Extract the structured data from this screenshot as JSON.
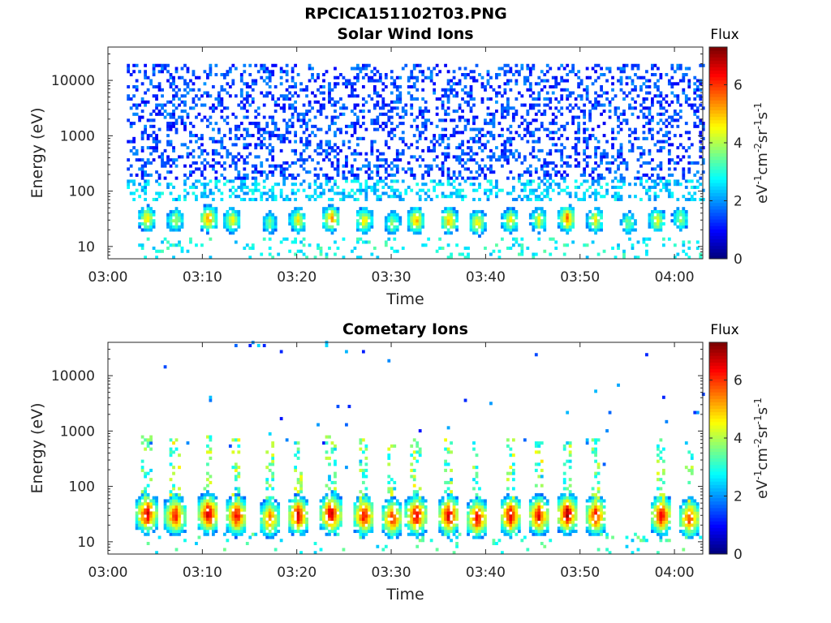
{
  "figure_title": "RPCICA151102T03.PNG",
  "chart_data": [
    {
      "type": "heatmap",
      "title": "Solar Wind Ions",
      "xlabel": "Time",
      "ylabel": "Energy (eV)",
      "x_ticks": [
        "03:00",
        "03:10",
        "03:20",
        "03:30",
        "03:40",
        "03:50",
        "04:00"
      ],
      "x_range": [
        "03:00",
        "04:03"
      ],
      "y_scale": "log",
      "y_ticks": [
        10,
        100,
        1000,
        10000
      ],
      "y_range": [
        6,
        40000
      ],
      "colorbar": {
        "label": "Flux",
        "unit": "eV-1cm-2sr-1s-1",
        "range": [
          0,
          7.3
        ],
        "ticks": [
          0,
          2,
          4,
          6
        ],
        "colormap": "jet"
      },
      "data_start": "03:02",
      "bursts": [
        {
          "time": "03:04",
          "energy": 30,
          "peak": 4.8
        },
        {
          "time": "03:07",
          "energy": 28,
          "peak": 4.2
        },
        {
          "time": "03:10.5",
          "energy": 30,
          "peak": 5.6
        },
        {
          "time": "03:13",
          "energy": 28,
          "peak": 4.6
        },
        {
          "time": "03:17",
          "energy": 25,
          "peak": 3.6
        },
        {
          "time": "03:20",
          "energy": 28,
          "peak": 4.6
        },
        {
          "time": "03:23.5",
          "energy": 30,
          "peak": 5.4
        },
        {
          "time": "03:27",
          "energy": 28,
          "peak": 4.8
        },
        {
          "time": "03:30",
          "energy": 25,
          "peak": 4.0
        },
        {
          "time": "03:32.5",
          "energy": 28,
          "peak": 5.2
        },
        {
          "time": "03:36",
          "energy": 28,
          "peak": 5.2
        },
        {
          "time": "03:39",
          "energy": 25,
          "peak": 4.8
        },
        {
          "time": "03:42.5",
          "energy": 28,
          "peak": 4.6
        },
        {
          "time": "03:45.5",
          "energy": 28,
          "peak": 4.4
        },
        {
          "time": "03:48.5",
          "energy": 30,
          "peak": 5.6
        },
        {
          "time": "03:51.5",
          "energy": 28,
          "peak": 4.6
        },
        {
          "time": "03:55",
          "energy": 25,
          "peak": 3.8
        },
        {
          "time": "03:58",
          "energy": 28,
          "peak": 4.4
        },
        {
          "time": "04:00.5",
          "energy": 30,
          "peak": 4.0
        }
      ]
    },
    {
      "type": "heatmap",
      "title": "Cometary Ions",
      "xlabel": "Time",
      "ylabel": "Energy (eV)",
      "x_ticks": [
        "03:00",
        "03:10",
        "03:20",
        "03:30",
        "03:40",
        "03:50",
        "04:00"
      ],
      "x_range": [
        "03:00",
        "04:03"
      ],
      "y_scale": "log",
      "y_ticks": [
        10,
        100,
        1000,
        10000
      ],
      "y_range": [
        6,
        40000
      ],
      "colorbar": {
        "label": "Flux",
        "unit": "eV-1cm-2sr-1s-1",
        "range": [
          0,
          7.3
        ],
        "ticks": [
          0,
          2,
          4,
          6
        ],
        "colormap": "jet"
      },
      "data_start": "03:02",
      "bursts": [
        {
          "time": "03:04",
          "energy": 30,
          "peak": 6.8
        },
        {
          "time": "03:07",
          "energy": 28,
          "peak": 6.4
        },
        {
          "time": "03:10.5",
          "energy": 30,
          "peak": 7.0
        },
        {
          "time": "03:13.5",
          "energy": 28,
          "peak": 6.6
        },
        {
          "time": "03:17",
          "energy": 25,
          "peak": 5.6
        },
        {
          "time": "03:20",
          "energy": 28,
          "peak": 6.6
        },
        {
          "time": "03:23.5",
          "energy": 30,
          "peak": 7.0
        },
        {
          "time": "03:27",
          "energy": 28,
          "peak": 6.6
        },
        {
          "time": "03:30",
          "energy": 25,
          "peak": 6.2
        },
        {
          "time": "03:32.5",
          "energy": 28,
          "peak": 6.8
        },
        {
          "time": "03:36",
          "energy": 28,
          "peak": 6.8
        },
        {
          "time": "03:39",
          "energy": 25,
          "peak": 6.6
        },
        {
          "time": "03:42.5",
          "energy": 28,
          "peak": 6.8
        },
        {
          "time": "03:45.5",
          "energy": 28,
          "peak": 6.6
        },
        {
          "time": "03:48.5",
          "energy": 30,
          "peak": 7.0
        },
        {
          "time": "03:51.5",
          "energy": 28,
          "peak": 6.4
        },
        {
          "time": "03:58.5",
          "energy": 28,
          "peak": 6.6
        },
        {
          "time": "04:01.5",
          "energy": 25,
          "peak": 6.2
        }
      ]
    }
  ]
}
